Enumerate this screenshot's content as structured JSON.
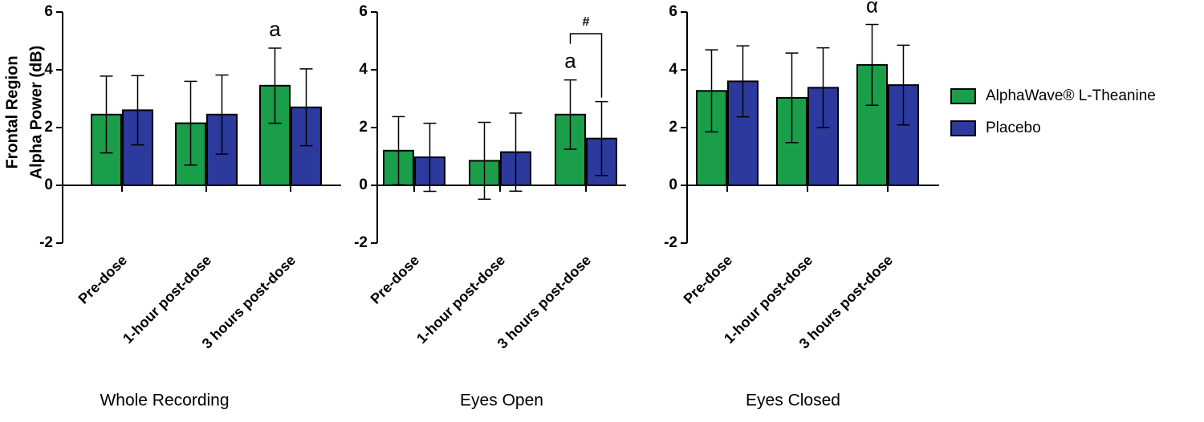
{
  "chart_data": [
    {
      "type": "bar",
      "xlabel": "Whole  Recording",
      "ylabel": [
        "Frontal Region",
        "Alpha Power (dB)"
      ],
      "categories": [
        "Pre-dose",
        "1-hour post-dose",
        "3 hours post-dose"
      ],
      "series": [
        {
          "name": "AlphaWave® L-Theanine",
          "color": "#1a9e4a",
          "values": [
            2.45,
            2.15,
            3.45
          ],
          "errors": [
            1.33,
            1.45,
            1.3
          ]
        },
        {
          "name": "Placebo",
          "color": "#2b3a9c",
          "values": [
            2.6,
            2.45,
            2.7
          ],
          "errors": [
            1.2,
            1.37,
            1.33
          ]
        }
      ],
      "ylim": [
        -2,
        6
      ],
      "yticks": [
        -2,
        0,
        2,
        4,
        6
      ],
      "annotations": [
        "a"
      ]
    },
    {
      "type": "bar",
      "xlabel": "Eyes  Open",
      "categories": [
        "Pre-dose",
        "1-hour post-dose",
        "3 hours post-dose"
      ],
      "series": [
        {
          "color": "#1a9e4a",
          "values": [
            1.2,
            0.85,
            2.45
          ],
          "errors": [
            1.18,
            1.33,
            1.2
          ]
        },
        {
          "color": "#2b3a9c",
          "values": [
            0.97,
            1.15,
            1.62
          ],
          "errors": [
            1.18,
            1.35,
            1.28
          ]
        }
      ],
      "ylim": [
        -2,
        6
      ],
      "yticks": [
        -2,
        0,
        2,
        4,
        6
      ],
      "annotations": [
        "a",
        "#"
      ]
    },
    {
      "type": "bar",
      "xlabel": "Eyes  Closed",
      "categories": [
        "Pre-dose",
        "1-hour post-dose",
        "3 hours post-dose"
      ],
      "series": [
        {
          "color": "#1a9e4a",
          "values": [
            3.27,
            3.03,
            4.17
          ],
          "errors": [
            1.42,
            1.55,
            1.4
          ]
        },
        {
          "color": "#2b3a9c",
          "values": [
            3.6,
            3.38,
            3.47
          ],
          "errors": [
            1.23,
            1.38,
            1.38
          ]
        }
      ],
      "ylim": [
        -2,
        6
      ],
      "yticks": [
        -2,
        0,
        2,
        4,
        6
      ],
      "annotations": [
        "α"
      ]
    }
  ]
}
